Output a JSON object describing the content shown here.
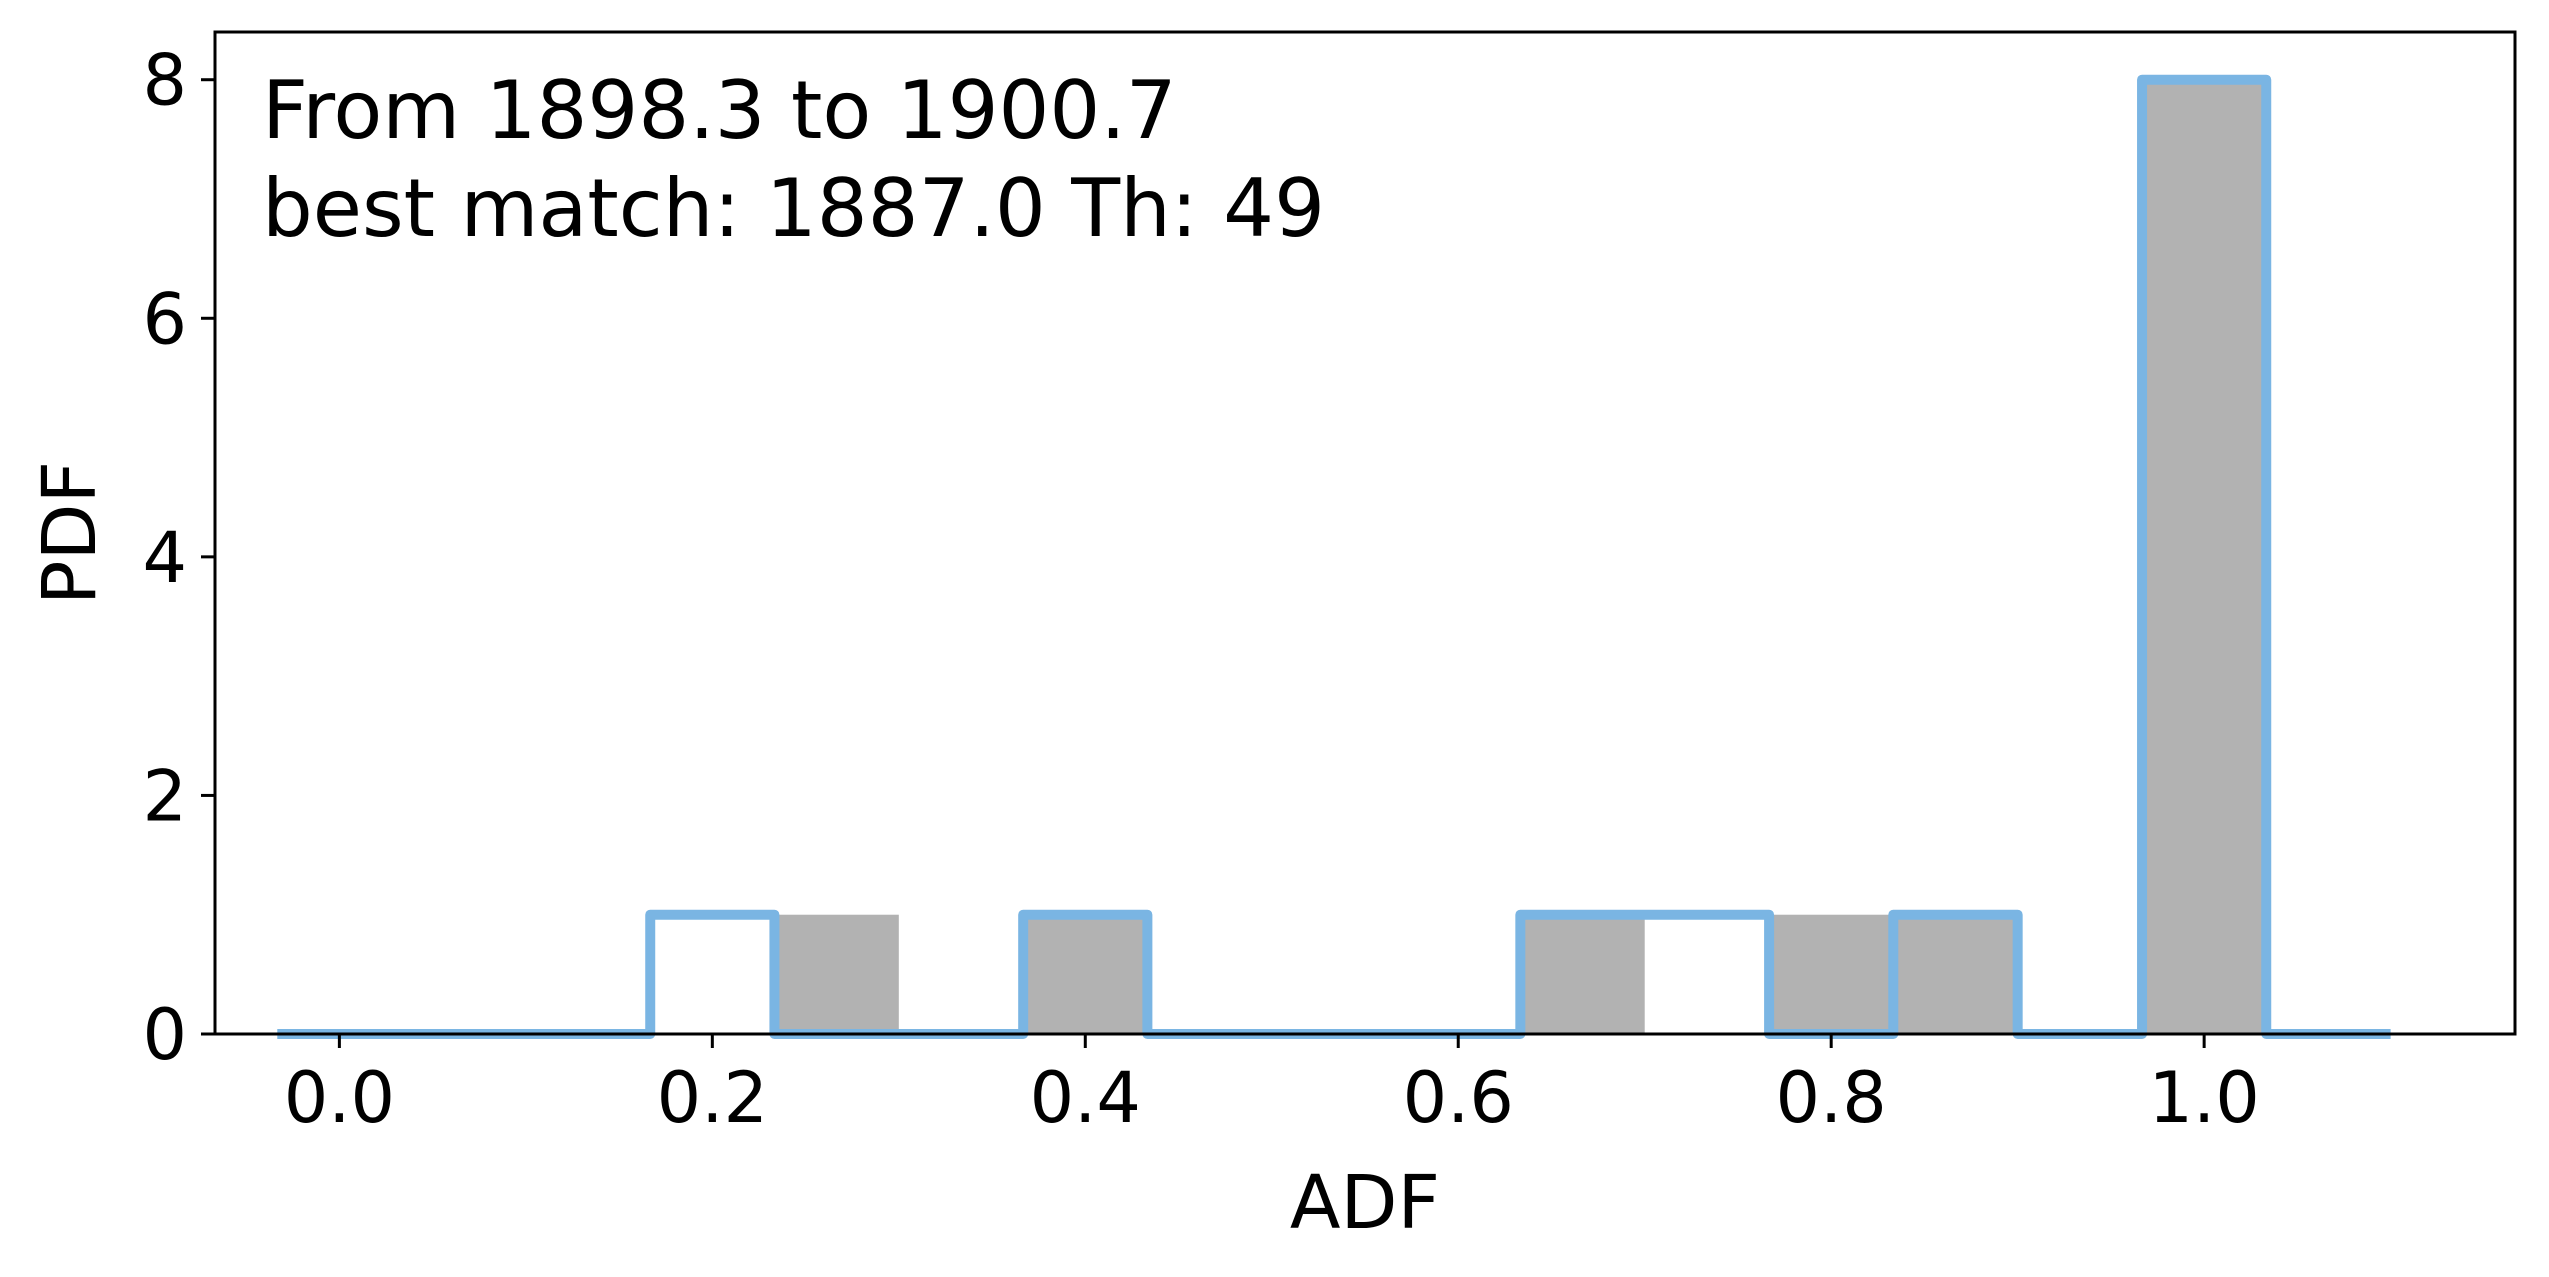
{
  "chart_data": {
    "type": "bar",
    "xlabel": "ADF",
    "ylabel": "PDF",
    "xlim": [
      -0.0667,
      1.1667
    ],
    "ylim": [
      0,
      8.4
    ],
    "x_ticks": [
      "0.0",
      "0.2",
      "0.4",
      "0.6",
      "0.8",
      "1.0"
    ],
    "y_ticks": [
      "0",
      "2",
      "4",
      "6",
      "8"
    ],
    "grid": false,
    "annotations": [
      "From 1898.3 to 1900.7",
      "best match: 1887.0  Th: 49"
    ],
    "series": [
      {
        "style": "filled bars",
        "color": "#b2b2b2",
        "bins": [
          {
            "x0": 0.2333,
            "x1": 0.3,
            "value": 1
          },
          {
            "x0": 0.3667,
            "x1": 0.4333,
            "value": 1
          },
          {
            "x0": 0.6333,
            "x1": 0.7,
            "value": 1
          },
          {
            "x0": 0.7667,
            "x1": 0.8333,
            "value": 1
          },
          {
            "x0": 0.8333,
            "x1": 0.9,
            "value": 1
          },
          {
            "x0": 0.9667,
            "x1": 1.0333,
            "value": 8
          }
        ]
      },
      {
        "style": "step outline",
        "color": "#7ab5e3",
        "edges": [
          -0.0333,
          0.1667,
          0.2333,
          0.3667,
          0.4333,
          0.6333,
          0.7667,
          0.8333,
          0.9,
          0.9667,
          1.0333,
          1.1
        ],
        "values": [
          0,
          1,
          0,
          1,
          0,
          1,
          0,
          1,
          0,
          8,
          0
        ]
      }
    ]
  }
}
